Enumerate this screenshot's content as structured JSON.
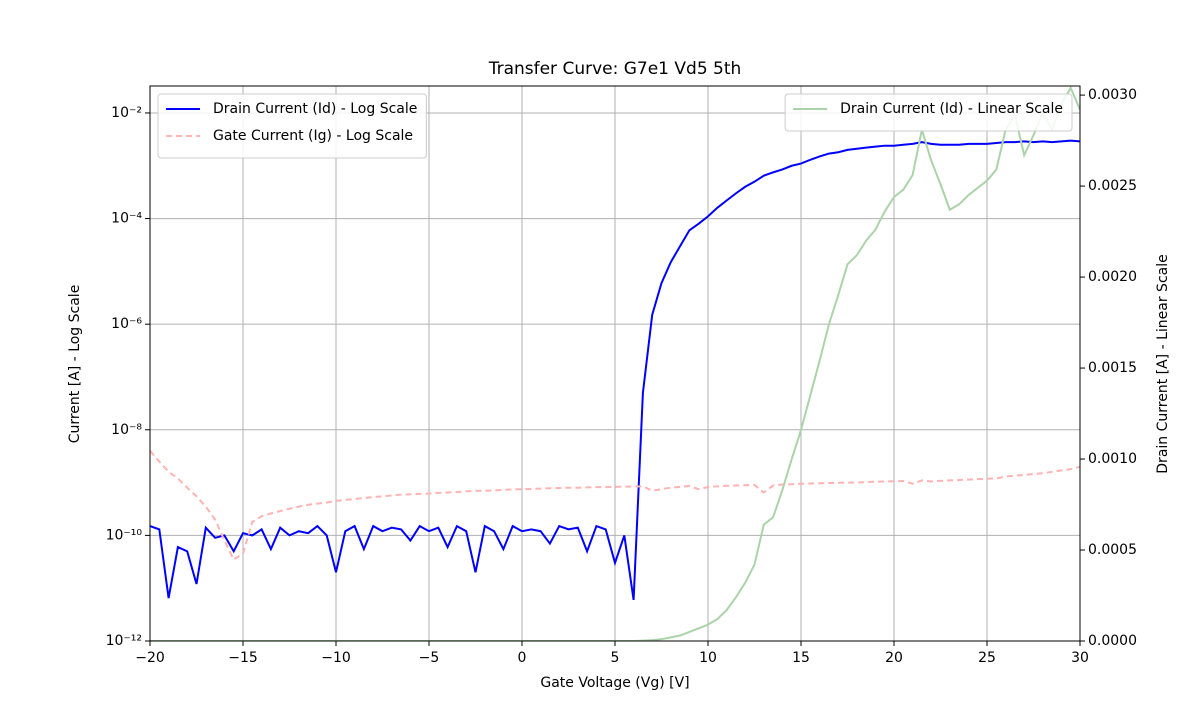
{
  "chart_data": {
    "type": "line",
    "title": "Transfer Curve: G7e1 Vd5 5th",
    "xlabel": "Gate Voltage (Vg) [V]",
    "ylabel": "Current [A] - Log Scale",
    "y2label": "Drain Current [A] - Linear Scale",
    "yscale": "log",
    "grid": true,
    "legend": "upper left",
    "y2legend": "upper right",
    "xlim": [
      -20,
      30
    ],
    "ylim": [
      1e-12,
      0.0324
    ],
    "y2lim": [
      0,
      0.00305
    ],
    "xticks": [
      {
        "value": -20,
        "label": "−20"
      },
      {
        "value": -15,
        "label": "−15"
      },
      {
        "value": -10,
        "label": "−10"
      },
      {
        "value": -5,
        "label": "−5"
      },
      0,
      5,
      10,
      15,
      20,
      25,
      30
    ],
    "yticks": [
      {
        "value": 1e-12,
        "label": "10⁻¹²"
      },
      {
        "value": 1e-10,
        "label": "10⁻¹⁰"
      },
      {
        "value": 1e-08,
        "label": "10⁻⁸"
      },
      {
        "value": 1e-06,
        "label": "10⁻⁶"
      },
      {
        "value": 0.0001,
        "label": "10⁻⁴"
      },
      {
        "value": 0.01,
        "label": "10⁻²"
      }
    ],
    "y2ticks": [
      {
        "value": 0,
        "label": "0.0000"
      },
      0.0005,
      {
        "value": 0.001,
        "label": "0.0010"
      },
      0.0015,
      {
        "value": 0.002,
        "label": "0.0020"
      },
      0.0025,
      {
        "value": 0.003,
        "label": "0.0030"
      }
    ],
    "x": [
      -20,
      -19.5,
      -19,
      -18.5,
      -18,
      -17.5,
      -17,
      -16.5,
      -16,
      -15.5,
      -15,
      -14.5,
      -14,
      -13.5,
      -13,
      -12.5,
      -12,
      -11.5,
      -11,
      -10.5,
      -10,
      -9.5,
      -9,
      -8.5,
      -8,
      -7.5,
      -7,
      -6.5,
      -6,
      -5.5,
      -5,
      -4.5,
      -4,
      -3.5,
      -3,
      -2.5,
      -2,
      -1.5,
      -1,
      -0.5,
      0,
      0.5,
      1,
      1.5,
      2,
      2.5,
      3,
      3.5,
      4,
      4.5,
      5,
      5.5,
      6,
      6.5,
      7,
      7.5,
      8,
      8.5,
      9,
      9.5,
      10,
      10.5,
      11,
      11.5,
      12,
      12.5,
      13,
      13.5,
      14,
      14.5,
      15,
      15.5,
      16,
      16.5,
      17,
      17.5,
      18,
      18.5,
      19,
      19.5,
      20,
      20.5,
      21,
      21.5,
      22,
      22.5,
      23,
      23.5,
      24,
      24.5,
      25,
      25.5,
      26,
      26.5,
      27,
      27.5,
      28,
      28.5,
      29,
      29.5,
      30
    ],
    "series": [
      {
        "name": "Drain Current (Id) - Log Scale",
        "color": "#0000ff",
        "style": "solid",
        "axis": "y",
        "values": [
          1.5e-10,
          1.3e-10,
          6.5e-12,
          6e-11,
          5e-11,
          1.2e-11,
          1.4e-10,
          9e-11,
          1e-10,
          5e-11,
          1.1e-10,
          1e-10,
          1.3e-10,
          5.5e-11,
          1.4e-10,
          1e-10,
          1.2e-10,
          1.1e-10,
          1.5e-10,
          1e-10,
          2e-11,
          1.2e-10,
          1.5e-10,
          5.5e-11,
          1.5e-10,
          1.2e-10,
          1.4e-10,
          1.3e-10,
          8e-11,
          1.5e-10,
          1.2e-10,
          1.4e-10,
          6e-11,
          1.5e-10,
          1.2e-10,
          2e-11,
          1.5e-10,
          1.2e-10,
          5.5e-11,
          1.5e-10,
          1.2e-10,
          1.3e-10,
          1.2e-10,
          7e-11,
          1.5e-10,
          1.3e-10,
          1.4e-10,
          5e-11,
          1.5e-10,
          1.3e-10,
          3e-11,
          1e-10,
          6e-12,
          5e-08,
          1.5e-06,
          6e-06,
          1.5e-05,
          3e-05,
          6e-05,
          8e-05,
          0.00011,
          0.00016,
          0.00022,
          0.0003,
          0.0004,
          0.0005,
          0.00065,
          0.00075,
          0.00085,
          0.001,
          0.0011,
          0.0013,
          0.0015,
          0.0017,
          0.0018,
          0.002,
          0.0021,
          0.0022,
          0.0023,
          0.0024,
          0.0024,
          0.0025,
          0.0026,
          0.0028,
          0.0026,
          0.0025,
          0.0025,
          0.0025,
          0.0026,
          0.0026,
          0.0026,
          0.0027,
          0.0028,
          0.0028,
          0.0029,
          0.0028,
          0.0029,
          0.0028,
          0.0029,
          0.003,
          0.0029
        ]
      },
      {
        "name": "Gate Current (Ig) - Log Scale",
        "color": "#ffb3b3",
        "style": "dashed",
        "axis": "y",
        "values": [
          4e-09,
          2.5e-09,
          1.6e-09,
          1.2e-09,
          8e-10,
          5.5e-10,
          3.5e-10,
          2e-10,
          8e-11,
          3.5e-11,
          4.5e-11,
          1.8e-10,
          2.3e-10,
          2.6e-10,
          2.9e-10,
          3.2e-10,
          3.5e-10,
          3.8e-10,
          4e-10,
          4.2e-10,
          4.5e-10,
          4.7e-10,
          4.9e-10,
          5.1e-10,
          5.3e-10,
          5.5e-10,
          5.7e-10,
          5.9e-10,
          6e-10,
          6.1e-10,
          6.2e-10,
          6.4e-10,
          6.5e-10,
          6.6e-10,
          6.8e-10,
          7e-10,
          7e-10,
          7.1e-10,
          7.3e-10,
          7.4e-10,
          7.5e-10,
          7.6e-10,
          7.7e-10,
          7.8e-10,
          7.9e-10,
          8e-10,
          8e-10,
          8.1e-10,
          8.2e-10,
          8.2e-10,
          8.3e-10,
          8.4e-10,
          8.4e-10,
          8.5e-10,
          7e-10,
          7.5e-10,
          8e-10,
          8.3e-10,
          8.6e-10,
          7.5e-10,
          8.2e-10,
          8.5e-10,
          8.7e-10,
          8.8e-10,
          8.9e-10,
          9e-10,
          6.5e-10,
          8.8e-10,
          9.2e-10,
          9.3e-10,
          9.5e-10,
          9.6e-10,
          9.7e-10,
          9.8e-10,
          9.9e-10,
          1e-09,
          1e-09,
          1.02e-09,
          1.04e-09,
          1.05e-09,
          1.06e-09,
          1.07e-09,
          9.5e-10,
          1.1e-09,
          1.05e-09,
          1.08e-09,
          1.1e-09,
          1.12e-09,
          1.14e-09,
          1.16e-09,
          1.18e-09,
          1.2e-09,
          1.3e-09,
          1.35e-09,
          1.4e-09,
          1.45e-09,
          1.5e-09,
          1.6e-09,
          1.7e-09,
          1.8e-09,
          2e-09
        ]
      },
      {
        "name": "Drain Current (Id) - Linear Scale",
        "color": "#aad4a8",
        "style": "solid",
        "axis": "y2",
        "values": [
          0,
          0,
          0,
          0,
          0,
          0,
          0,
          0,
          0,
          0,
          0,
          0,
          0,
          0,
          0,
          0,
          0,
          0,
          0,
          0,
          0,
          0,
          0,
          0,
          0,
          0,
          0,
          0,
          0,
          0,
          0,
          0,
          0,
          0,
          0,
          0,
          0,
          0,
          0,
          0,
          0,
          0,
          0,
          0,
          0,
          0,
          0,
          0,
          0,
          0,
          0,
          0,
          0,
          2e-06,
          5e-06,
          1e-05,
          2e-05,
          3e-05,
          5e-05,
          7e-05,
          9e-05,
          0.00012,
          0.00017,
          0.00024,
          0.00032,
          0.00042,
          0.00064,
          0.00068,
          0.00083,
          0.001,
          0.00116,
          0.00135,
          0.00154,
          0.00174,
          0.0019,
          0.00207,
          0.00212,
          0.0022,
          0.00226,
          0.00236,
          0.00244,
          0.00248,
          0.00256,
          0.00281,
          0.00264,
          0.00251,
          0.00237,
          0.0024,
          0.00245,
          0.00249,
          0.00253,
          0.00259,
          0.00281,
          0.00289,
          0.00267,
          0.00278,
          0.0029,
          0.00281,
          0.00295,
          0.00304,
          0.00292
        ]
      }
    ]
  }
}
